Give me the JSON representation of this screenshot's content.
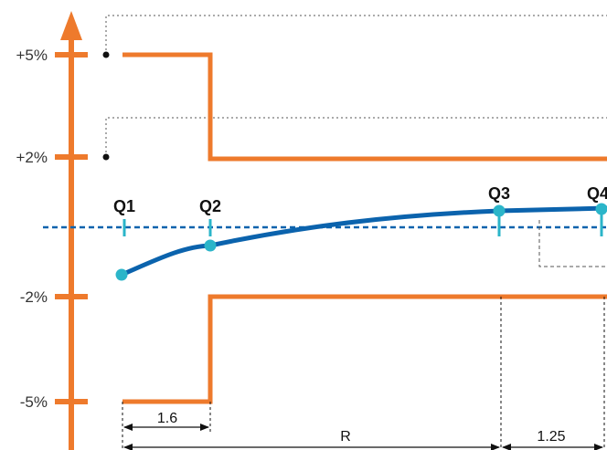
{
  "colors": {
    "limit_line": "#ee7a2c",
    "curve": "#0b63ad",
    "marker": "#2bb5c9",
    "dashed_gray": "#555555",
    "text": "#111111"
  },
  "y_levels": [
    {
      "label": "+5%"
    },
    {
      "label": "+2%"
    },
    {
      "label": "-2%"
    },
    {
      "label": "-5%"
    }
  ],
  "markers": [
    {
      "label": "Q1"
    },
    {
      "label": "Q2"
    },
    {
      "label": "Q3"
    },
    {
      "label": "Q4"
    }
  ],
  "dimensions": [
    {
      "label": "1.6"
    },
    {
      "label": "R"
    },
    {
      "label": "1.25"
    }
  ]
}
